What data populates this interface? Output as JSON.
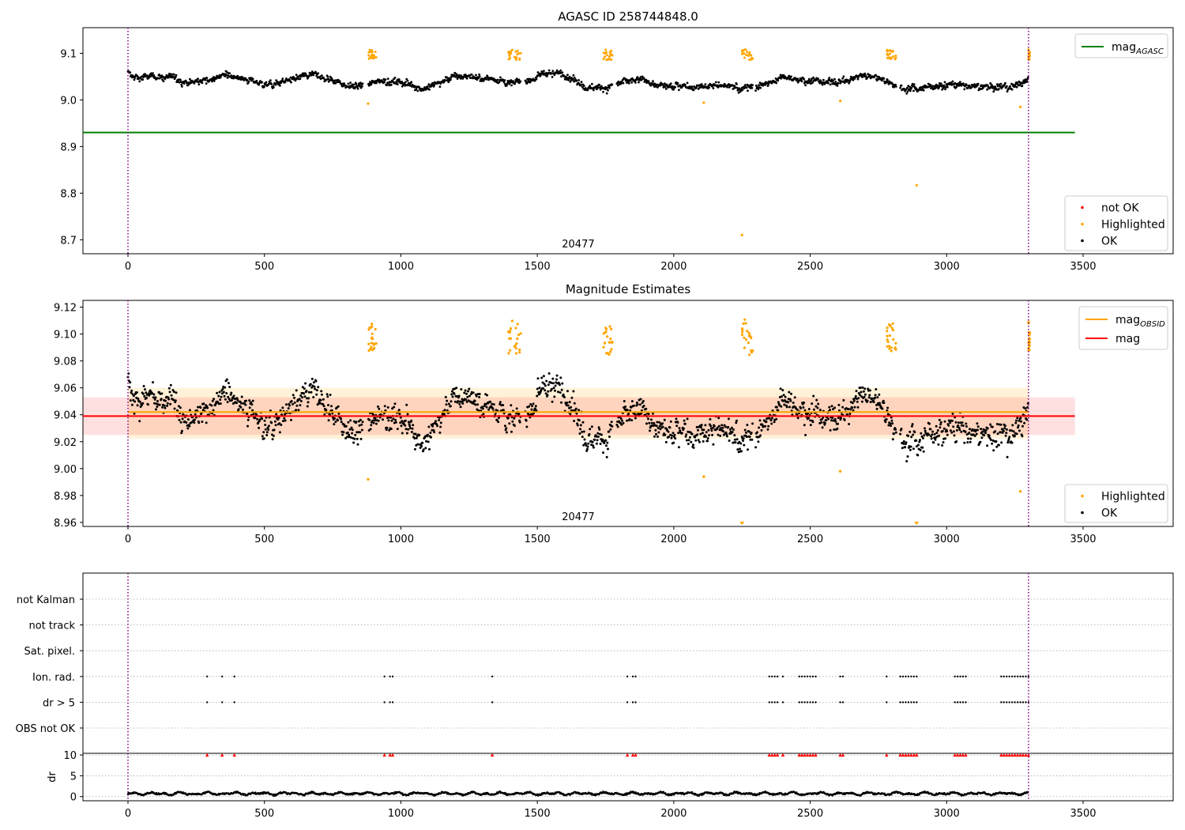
{
  "colors": {
    "ok": "#000000",
    "highlighted": "#ffa500",
    "not_ok": "#ff0000",
    "mag_agasc": "#008000",
    "mag_obsid": "#ffa500",
    "mag": "#ff0000",
    "obs_marker": "#800080"
  },
  "chart_data": [
    {
      "id": "agasc_panel",
      "type": "scatter",
      "title": "AGASC ID 258744848.0",
      "xlim": [
        -165,
        3830
      ],
      "ylim": [
        8.67,
        9.155
      ],
      "xticks": [
        0,
        500,
        1000,
        1500,
        2000,
        2500,
        3000,
        3500
      ],
      "yticks": [
        8.7,
        8.8,
        8.9,
        9.0,
        9.1
      ],
      "hlines": [
        {
          "name": "mag_AGASC",
          "y": 8.93,
          "x": [
            -165,
            3470
          ]
        }
      ],
      "vlines": [
        0,
        3300
      ],
      "obsid_label": "20477",
      "obsid_label_x": 1650,
      "legends": [
        {
          "position": "top-right",
          "entries": [
            {
              "kind": "line",
              "label": "mag",
              "sub": "AGASC",
              "color": "#008000"
            }
          ]
        },
        {
          "position": "bottom-right",
          "entries": [
            {
              "kind": "dot",
              "label": "not OK",
              "color": "#ff0000"
            },
            {
              "kind": "dot",
              "label": "Highlighted",
              "color": "#ffa500"
            },
            {
              "kind": "dot",
              "label": "OK",
              "color": "#000000"
            }
          ]
        }
      ]
    },
    {
      "id": "mag_panel",
      "type": "scatter",
      "title": "Magnitude Estimates",
      "xlim": [
        -165,
        3830
      ],
      "ylim": [
        8.957,
        9.125
      ],
      "xticks": [
        0,
        500,
        1000,
        1500,
        2000,
        2500,
        3000,
        3500
      ],
      "yticks": [
        8.96,
        8.98,
        9.0,
        9.02,
        9.04,
        9.06,
        9.08,
        9.1,
        9.12
      ],
      "mag_line": {
        "y": 9.039,
        "band": [
          9.025,
          9.053
        ],
        "x": [
          -165,
          3470
        ]
      },
      "mag_obsid_line": {
        "y": 9.042,
        "band": [
          9.022,
          9.06
        ],
        "x": [
          0,
          3300
        ]
      },
      "vlines": [
        0,
        3300
      ],
      "obsid_label": "20477",
      "obsid_label_x": 1650,
      "clipped_points_x": [
        2250,
        2890
      ],
      "outliers": [
        {
          "x": 880,
          "y": 8.992
        },
        {
          "x": 2110,
          "y": 8.994
        },
        {
          "x": 2610,
          "y": 8.998
        },
        {
          "x": 3270,
          "y": 8.983
        }
      ],
      "legends": [
        {
          "position": "top-right",
          "entries": [
            {
              "kind": "line",
              "label": "mag",
              "sub": "OBSID",
              "color": "#ffa500"
            },
            {
              "kind": "line",
              "label": "mag",
              "sub": "",
              "color": "#ff0000"
            }
          ]
        },
        {
          "position": "bottom-right",
          "entries": [
            {
              "kind": "dot",
              "label": "Highlighted",
              "color": "#ffa500"
            },
            {
              "kind": "dot",
              "label": "OK",
              "color": "#000000"
            }
          ]
        }
      ]
    },
    {
      "id": "flags_panel",
      "type": "scatter",
      "xlim": [
        -165,
        3830
      ],
      "categories": [
        "not Kalman",
        "not track",
        "Sat. pixel.",
        "Ion. rad.",
        "dr > 5",
        "OBS not OK"
      ],
      "flag_x": [
        290,
        345,
        390,
        940,
        960,
        970,
        1335,
        1830,
        1850,
        1860,
        2350,
        2360,
        2370,
        2380,
        2400,
        2460,
        2470,
        2480,
        2490,
        2500,
        2510,
        2520,
        2610,
        2620,
        2780,
        2830,
        2840,
        2850,
        2860,
        2870,
        2880,
        2890,
        3030,
        3040,
        3050,
        3060,
        3070,
        3200,
        3210,
        3220,
        3230,
        3240,
        3250,
        3260,
        3270,
        3280,
        3290,
        3300
      ],
      "vlines": [
        0,
        3300
      ]
    },
    {
      "id": "dr_panel",
      "type": "scatter",
      "ylabel": "dr",
      "xlim": [
        -165,
        3830
      ],
      "ylim": [
        -1,
        10.4
      ],
      "yticks": [
        0,
        5,
        10
      ],
      "xticks": [
        0,
        500,
        1000,
        1500,
        2000,
        2500,
        3000,
        3500
      ],
      "clip_marker_y": 10,
      "vlines": [
        0,
        3300
      ]
    }
  ]
}
